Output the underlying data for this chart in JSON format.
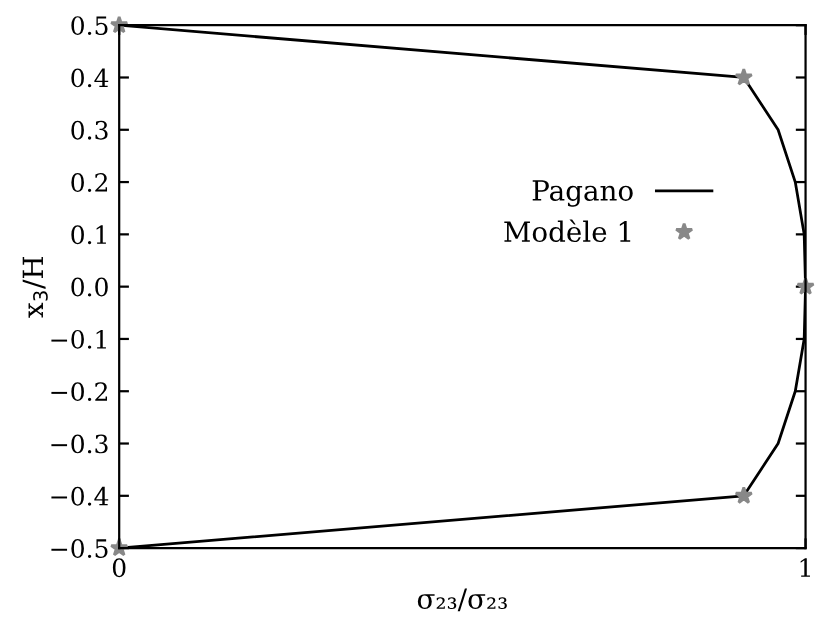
{
  "chart_data": {
    "type": "line",
    "xlabel": "σ₂₃/σ₂₃",
    "ylabel": "x$_{3}$/H",
    "xlim": [
      0,
      1
    ],
    "xticks": [
      0,
      1
    ],
    "ylim": [
      -0.5,
      0.5
    ],
    "yticks": [
      {
        "value": -0.5,
        "label": "−0.5"
      },
      {
        "value": -0.4,
        "label": "−0.4"
      },
      {
        "value": -0.3,
        "label": "−0.3"
      },
      {
        "value": -0.2,
        "label": "−0.2"
      },
      {
        "value": -0.1,
        "label": "−0.1"
      },
      {
        "value": 0,
        "label": "0.0"
      },
      {
        "value": 0.1,
        "label": "0.1"
      },
      {
        "value": 0.2,
        "label": "0.2"
      },
      {
        "value": 0.3,
        "label": "0.3"
      },
      {
        "value": 0.4,
        "label": "0.4"
      },
      {
        "value": 0.5,
        "label": "0.5"
      }
    ],
    "grid": false,
    "legend": "right",
    "series": [
      {
        "name": "Pagano",
        "color": "#000000",
        "marker": "none",
        "line_style": "solid",
        "x": [
          0,
          0.91,
          0.96,
          0.985,
          0.998,
          1,
          0.998,
          0.985,
          0.96,
          0.91,
          0
        ],
        "values": [
          0.5,
          0.4,
          0.3,
          0.2,
          0.1,
          0,
          -0.1,
          -0.2,
          -0.3,
          -0.4,
          -0.5
        ]
      },
      {
        "name": "Modèle 1",
        "type": "scatter",
        "color": "#888888",
        "marker": "star",
        "x": [
          0,
          0.91,
          1,
          0.91,
          0
        ],
        "values": [
          0.5,
          0.4,
          0,
          -0.4,
          -0.5
        ]
      }
    ]
  }
}
